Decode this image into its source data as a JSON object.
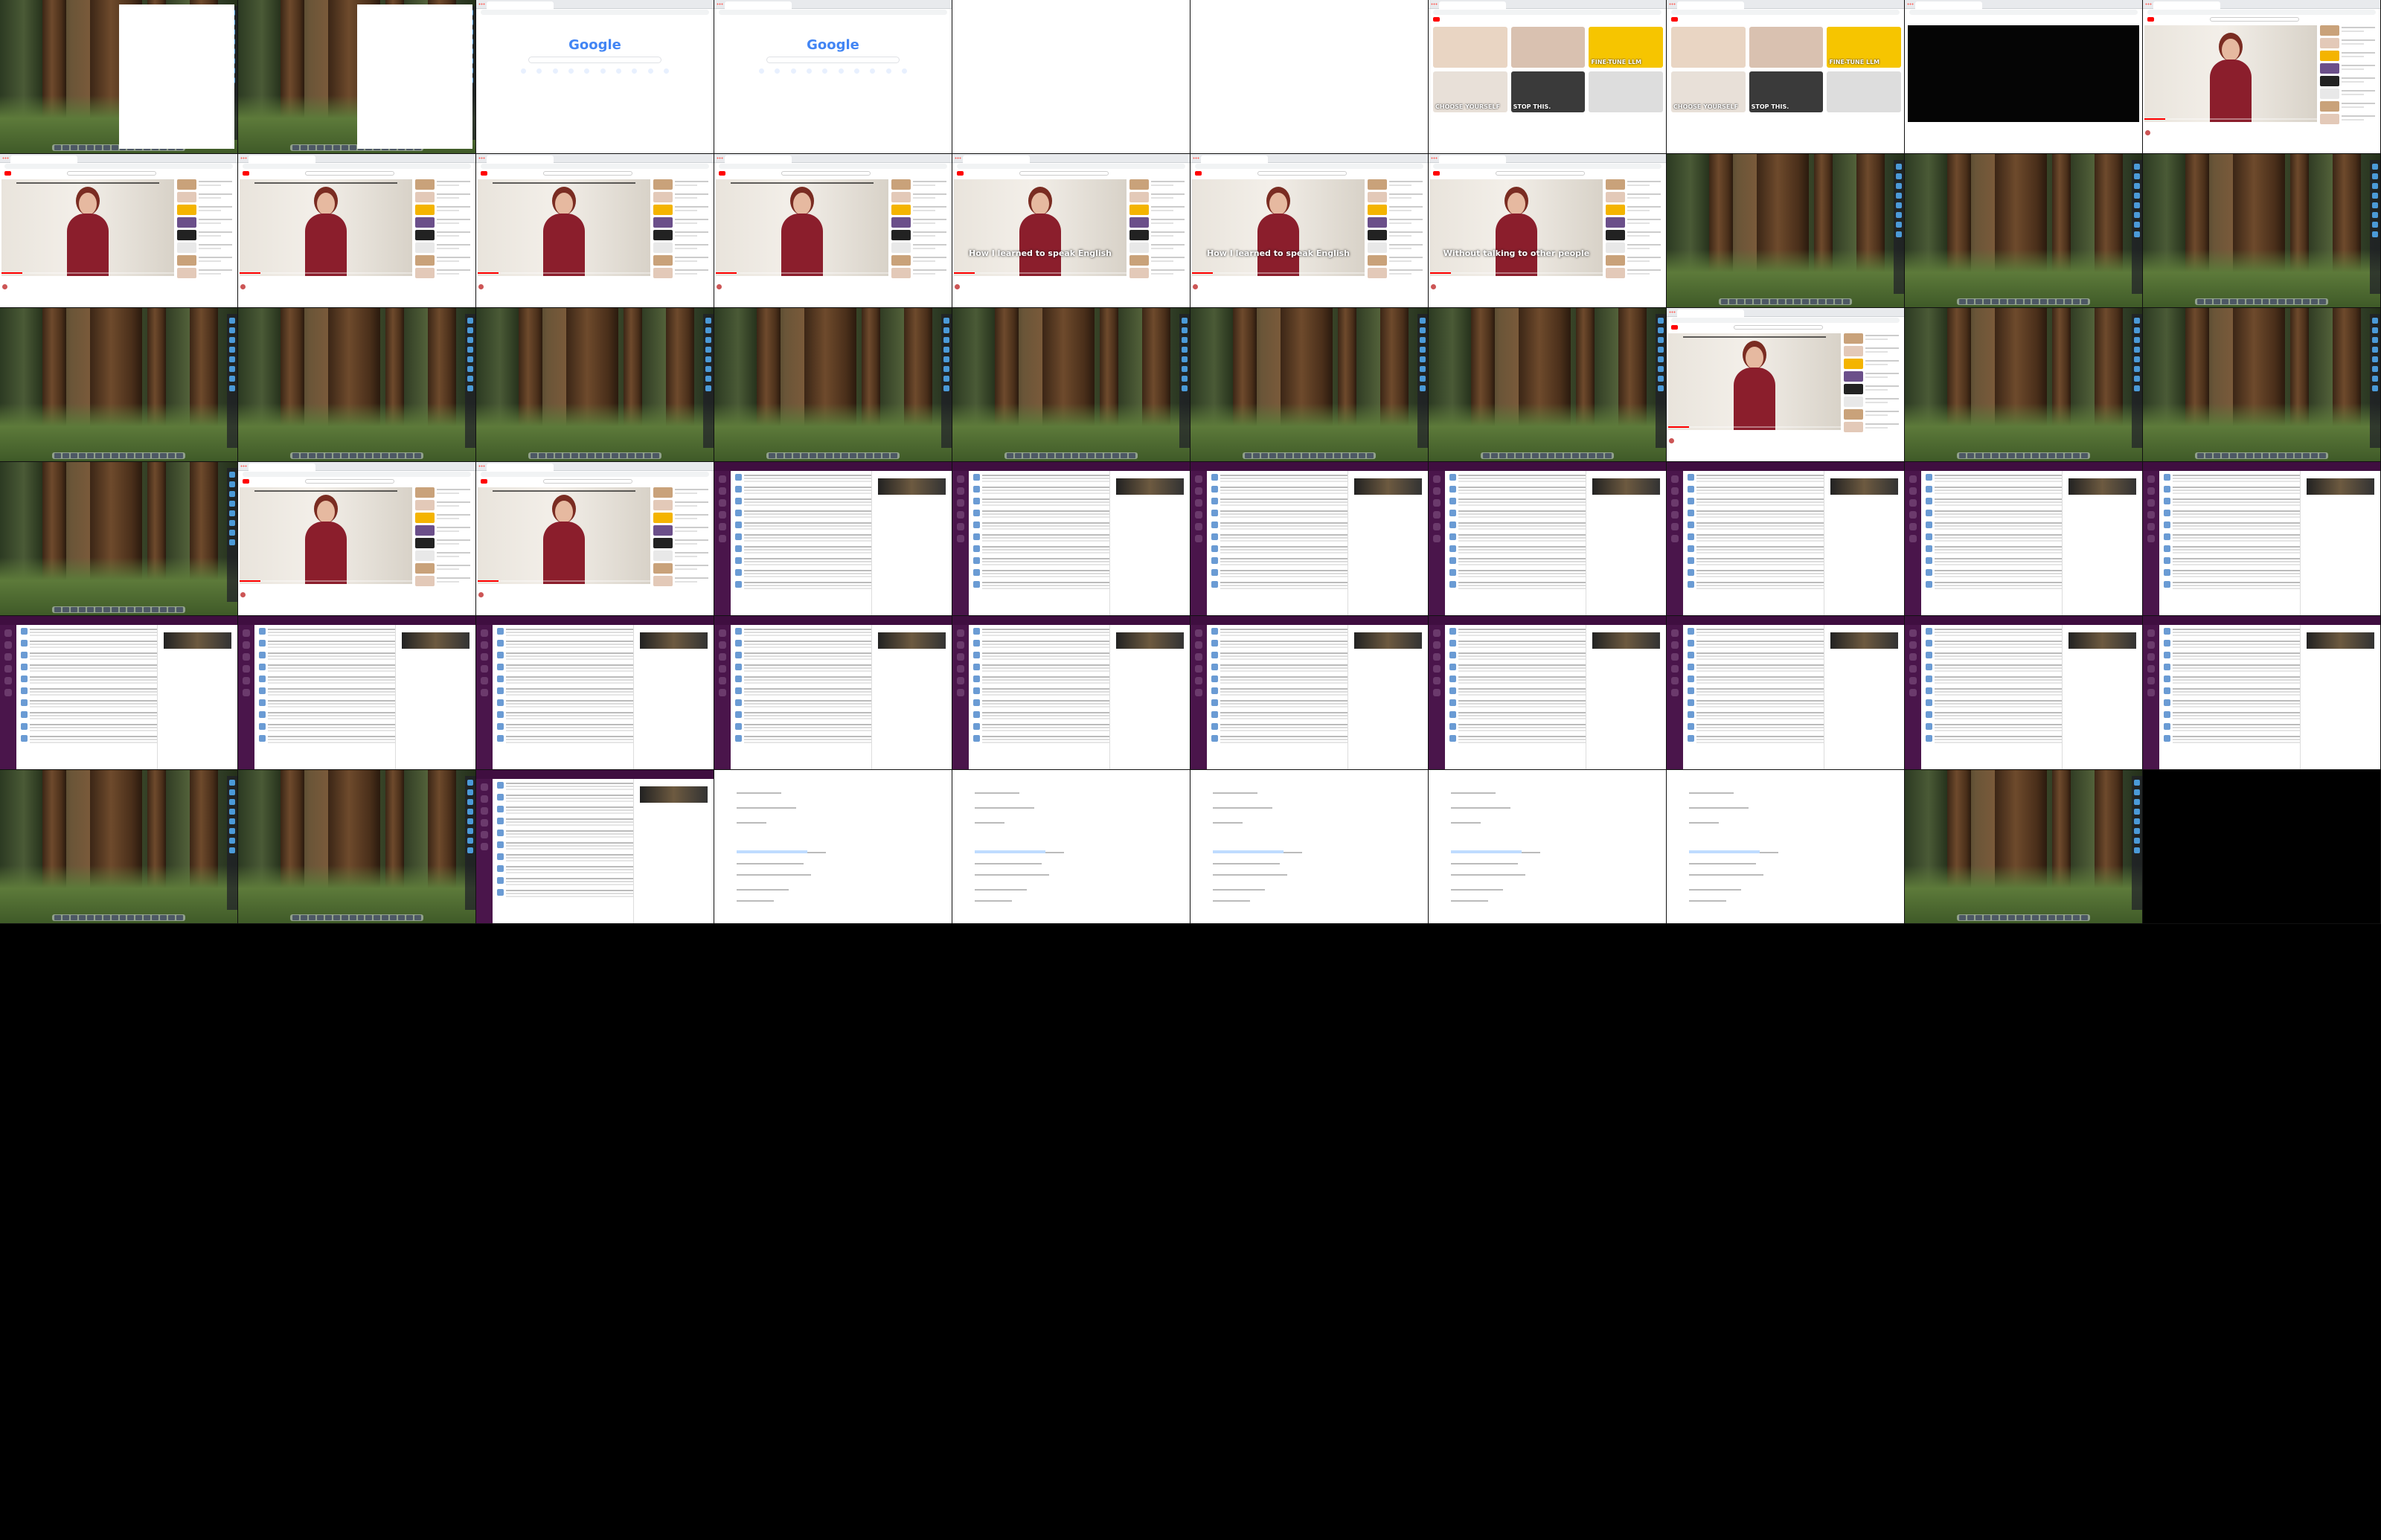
{
  "layout": {
    "columns": 10,
    "rows": 6
  },
  "colors": {
    "youtube_red": "#ff0000",
    "slack_purple": "#4a154b",
    "google_blue": "#4285f4"
  },
  "tiles": [
    {
      "kind": "forest_browser"
    },
    {
      "kind": "forest_browser"
    },
    {
      "kind": "google",
      "logo": "Google"
    },
    {
      "kind": "google",
      "logo": "Google"
    },
    {
      "kind": "blank"
    },
    {
      "kind": "blank"
    },
    {
      "kind": "yt_home",
      "thumbs": [
        "",
        "",
        "FINE-TUNE LLM",
        "CHOOSE YOURSELF",
        "STOP THIS.",
        ""
      ]
    },
    {
      "kind": "yt_home",
      "thumbs": [
        "",
        "",
        "FINE-TUNE LLM",
        "CHOOSE YOURSELF",
        "STOP THIS.",
        ""
      ]
    },
    {
      "kind": "yt_black"
    },
    {
      "kind": "yt_watch",
      "caption": ""
    },
    {
      "kind": "yt_watch",
      "sub": true
    },
    {
      "kind": "yt_watch",
      "sub": true
    },
    {
      "kind": "yt_watch",
      "sub": true
    },
    {
      "kind": "yt_watch",
      "sub": true
    },
    {
      "kind": "yt_watch",
      "caption": "How I learned to speak English"
    },
    {
      "kind": "yt_watch",
      "caption": "How I learned to speak English"
    },
    {
      "kind": "yt_watch",
      "caption": "Without talking to other people"
    },
    {
      "kind": "forest"
    },
    {
      "kind": "forest"
    },
    {
      "kind": "forest"
    },
    {
      "kind": "forest"
    },
    {
      "kind": "forest"
    },
    {
      "kind": "forest"
    },
    {
      "kind": "forest"
    },
    {
      "kind": "forest"
    },
    {
      "kind": "forest"
    },
    {
      "kind": "forest"
    },
    {
      "kind": "yt_watch",
      "sub": true
    },
    {
      "kind": "forest"
    },
    {
      "kind": "forest"
    },
    {
      "kind": "forest"
    },
    {
      "kind": "yt_watch",
      "sub": true
    },
    {
      "kind": "yt_watch",
      "sub": true
    },
    {
      "kind": "slack"
    },
    {
      "kind": "slack"
    },
    {
      "kind": "slack"
    },
    {
      "kind": "slack"
    },
    {
      "kind": "slack"
    },
    {
      "kind": "slack"
    },
    {
      "kind": "slack"
    },
    {
      "kind": "slack"
    },
    {
      "kind": "slack"
    },
    {
      "kind": "slack"
    },
    {
      "kind": "slack"
    },
    {
      "kind": "slack"
    },
    {
      "kind": "slack"
    },
    {
      "kind": "slack"
    },
    {
      "kind": "slack"
    },
    {
      "kind": "slack"
    },
    {
      "kind": "slack"
    },
    {
      "kind": "forest"
    },
    {
      "kind": "forest"
    },
    {
      "kind": "slack"
    },
    {
      "kind": "doc"
    },
    {
      "kind": "doc"
    },
    {
      "kind": "doc"
    },
    {
      "kind": "doc"
    },
    {
      "kind": "doc"
    },
    {
      "kind": "forest"
    },
    {
      "kind": "empty"
    }
  ]
}
